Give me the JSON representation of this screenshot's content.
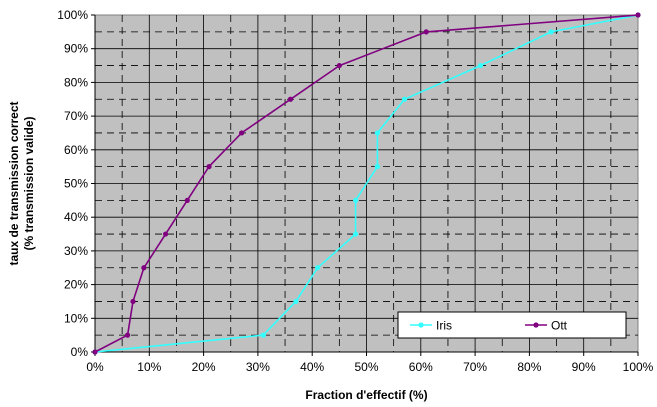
{
  "chart_data": {
    "type": "line",
    "title": "",
    "xlabel": "Fraction d'effectif (%)",
    "ylabel_lines": [
      "taux de transmission correct",
      "(% transmission valide)"
    ],
    "xlim": [
      0,
      100
    ],
    "ylim": [
      0,
      100
    ],
    "x_ticks": [
      0,
      10,
      20,
      30,
      40,
      50,
      60,
      70,
      80,
      90,
      100
    ],
    "y_ticks": [
      0,
      10,
      20,
      30,
      40,
      50,
      60,
      70,
      80,
      90,
      100
    ],
    "tick_suffix": "%",
    "grid": true,
    "plot_background": "#c0c0c0",
    "legend_position": "bottom-right",
    "series": [
      {
        "name": "Iris",
        "color": "#33ffff",
        "points": [
          [
            0,
            0
          ],
          [
            31,
            5
          ],
          [
            37,
            15
          ],
          [
            41,
            25
          ],
          [
            48,
            35
          ],
          [
            48,
            45
          ],
          [
            52,
            55
          ],
          [
            52,
            65
          ],
          [
            57,
            75
          ],
          [
            71,
            85
          ],
          [
            84,
            95
          ],
          [
            100,
            100
          ]
        ]
      },
      {
        "name": "Ott",
        "color": "#800080",
        "points": [
          [
            0,
            0
          ],
          [
            6,
            5
          ],
          [
            7,
            15
          ],
          [
            9,
            25
          ],
          [
            13,
            35
          ],
          [
            17,
            45
          ],
          [
            21,
            55
          ],
          [
            27,
            65
          ],
          [
            36,
            75
          ],
          [
            45,
            85
          ],
          [
            61,
            95
          ],
          [
            100,
            100
          ]
        ]
      }
    ]
  }
}
